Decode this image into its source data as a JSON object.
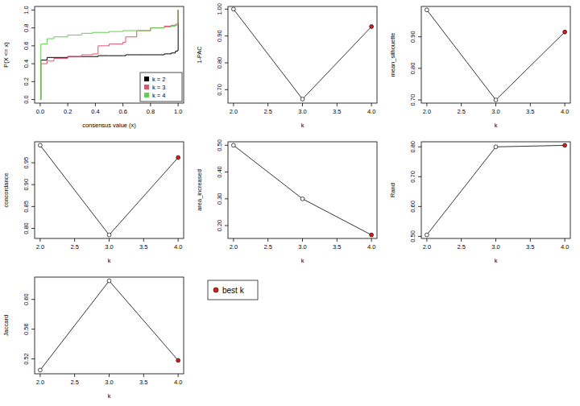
{
  "chart_data": [
    {
      "type": "line",
      "line_style": "step",
      "x_label": "consensus value (x)",
      "y_label": "P(X <= x)",
      "legend": "bottomright",
      "x": [
        0,
        0.005,
        0.05,
        0.1,
        0.2,
        0.3,
        0.38,
        0.42,
        0.5,
        0.6,
        0.62,
        0.7,
        0.8,
        0.9,
        0.95,
        0.98,
        0.995,
        1.0
      ],
      "series": [
        {
          "name": "k = 2",
          "color": "#000000",
          "values": [
            0,
            0.44,
            0.47,
            0.47,
            0.48,
            0.48,
            0.48,
            0.49,
            0.49,
            0.49,
            0.5,
            0.5,
            0.5,
            0.51,
            0.52,
            0.54,
            0.55,
            1.0
          ]
        },
        {
          "name": "k = 3",
          "color": "#DF536B",
          "values": [
            0,
            0.4,
            0.43,
            0.46,
            0.48,
            0.5,
            0.51,
            0.6,
            0.62,
            0.64,
            0.7,
            0.77,
            0.8,
            0.82,
            0.83,
            0.84,
            0.86,
            1.0
          ]
        },
        {
          "name": "k = 4",
          "color": "#61D04F",
          "values": [
            0,
            0.62,
            0.68,
            0.7,
            0.72,
            0.74,
            0.75,
            0.75,
            0.76,
            0.77,
            0.77,
            0.77,
            0.8,
            0.81,
            0.82,
            0.83,
            0.85,
            1.0
          ]
        }
      ],
      "xlim": [
        -0.04,
        1.04
      ],
      "ylim": [
        -0.04,
        1.04
      ],
      "xticks": [
        {
          "value": 0,
          "label": "0.0"
        },
        {
          "value": 0.2,
          "label": "0.2"
        },
        {
          "value": 0.4,
          "label": "0.4"
        },
        {
          "value": 0.6,
          "label": "0.6"
        },
        {
          "value": 0.8,
          "label": "0.8"
        },
        {
          "value": 1,
          "label": "1.0"
        }
      ],
      "yticks": [
        {
          "value": 0,
          "label": "0.0"
        },
        {
          "value": 0.2,
          "label": "0.2"
        },
        {
          "value": 0.4,
          "label": "0.4"
        },
        {
          "value": 0.6,
          "label": "0.6"
        },
        {
          "value": 0.8,
          "label": "0.8"
        },
        {
          "value": 1,
          "label": "1.0"
        }
      ]
    },
    {
      "type": "line",
      "marker": "circle",
      "x_label": "k",
      "y_label": "1-PAC",
      "x": [
        2,
        3,
        4
      ],
      "values": [
        1.0,
        0.665,
        0.935
      ],
      "colors": [
        "#FFFFFF",
        "#FFFFFF",
        "#E41A1C"
      ],
      "xlim": [
        1.92,
        4.08
      ],
      "ylim": [
        0.65,
        1.01
      ],
      "xticks": [
        {
          "value": 2,
          "label": "2.0"
        },
        {
          "value": 2.5,
          "label": "2.5"
        },
        {
          "value": 3,
          "label": "3.0"
        },
        {
          "value": 3.5,
          "label": "3.5"
        },
        {
          "value": 4,
          "label": "4.0"
        }
      ],
      "yticks": [
        {
          "value": 0.7,
          "label": "0.70"
        },
        {
          "value": 0.8,
          "label": "0.80"
        },
        {
          "value": 0.9,
          "label": "0.90"
        },
        {
          "value": 1,
          "label": "1.00"
        }
      ]
    },
    {
      "type": "line",
      "marker": "circle",
      "x_label": "k",
      "y_label": "mean_silhouette",
      "x": [
        2,
        3,
        4
      ],
      "values": [
        0.985,
        0.7,
        0.915
      ],
      "colors": [
        "#FFFFFF",
        "#FFFFFF",
        "#E41A1C"
      ],
      "xlim": [
        1.92,
        4.08
      ],
      "ylim": [
        0.69,
        0.996
      ],
      "xticks": [
        {
          "value": 2,
          "label": "2.0"
        },
        {
          "value": 2.5,
          "label": "2.5"
        },
        {
          "value": 3,
          "label": "3.0"
        },
        {
          "value": 3.5,
          "label": "3.5"
        },
        {
          "value": 4,
          "label": "4.0"
        }
      ],
      "yticks": [
        {
          "value": 0.7,
          "label": "0.70"
        },
        {
          "value": 0.8,
          "label": "0.80"
        },
        {
          "value": 0.9,
          "label": "0.90"
        }
      ]
    },
    {
      "type": "line",
      "marker": "circle",
      "x_label": "k",
      "y_label": "concordance",
      "x": [
        2,
        3,
        4
      ],
      "values": [
        0.99,
        0.785,
        0.962
      ],
      "colors": [
        "#FFFFFF",
        "#FFFFFF",
        "#E41A1C"
      ],
      "xlim": [
        1.92,
        4.08
      ],
      "ylim": [
        0.777,
        0.998
      ],
      "xticks": [
        {
          "value": 2,
          "label": "2.0"
        },
        {
          "value": 2.5,
          "label": "2.5"
        },
        {
          "value": 3,
          "label": "3.0"
        },
        {
          "value": 3.5,
          "label": "3.5"
        },
        {
          "value": 4,
          "label": "4.0"
        }
      ],
      "yticks": [
        {
          "value": 0.8,
          "label": "0.80"
        },
        {
          "value": 0.85,
          "label": "0.85"
        },
        {
          "value": 0.9,
          "label": "0.90"
        },
        {
          "value": 0.95,
          "label": "0.95"
        }
      ]
    },
    {
      "type": "line",
      "marker": "circle",
      "x_label": "k",
      "y_label": "area_increased",
      "x": [
        2,
        3,
        4
      ],
      "values": [
        0.5,
        0.3,
        0.165
      ],
      "colors": [
        "#FFFFFF",
        "#FFFFFF",
        "#E41A1C"
      ],
      "xlim": [
        1.92,
        4.08
      ],
      "ylim": [
        0.152,
        0.513
      ],
      "xticks": [
        {
          "value": 2,
          "label": "2.0"
        },
        {
          "value": 2.5,
          "label": "2.5"
        },
        {
          "value": 3,
          "label": "3.0"
        },
        {
          "value": 3.5,
          "label": "3.5"
        },
        {
          "value": 4,
          "label": "4.0"
        }
      ],
      "yticks": [
        {
          "value": 0.2,
          "label": "0.20"
        },
        {
          "value": 0.3,
          "label": "0.30"
        },
        {
          "value": 0.4,
          "label": "0.40"
        },
        {
          "value": 0.5,
          "label": "0.50"
        }
      ]
    },
    {
      "type": "line",
      "marker": "circle",
      "x_label": "k",
      "y_label": "Rand",
      "x": [
        2,
        3,
        4
      ],
      "values": [
        0.505,
        0.8,
        0.805
      ],
      "colors": [
        "#FFFFFF",
        "#FFFFFF",
        "#E41A1C"
      ],
      "xlim": [
        1.92,
        4.08
      ],
      "ylim": [
        0.493,
        0.817
      ],
      "xticks": [
        {
          "value": 2,
          "label": "2.0"
        },
        {
          "value": 2.5,
          "label": "2.5"
        },
        {
          "value": 3,
          "label": "3.0"
        },
        {
          "value": 3.5,
          "label": "3.5"
        },
        {
          "value": 4,
          "label": "4.0"
        }
      ],
      "yticks": [
        {
          "value": 0.5,
          "label": "0.50"
        },
        {
          "value": 0.6,
          "label": "0.60"
        },
        {
          "value": 0.7,
          "label": "0.70"
        },
        {
          "value": 0.8,
          "label": "0.80"
        }
      ]
    },
    {
      "type": "line",
      "marker": "circle",
      "x_label": "k",
      "y_label": "Jaccard",
      "x": [
        2,
        3,
        4
      ],
      "values": [
        0.505,
        0.625,
        0.518
      ],
      "colors": [
        "#FFFFFF",
        "#FFFFFF",
        "#E41A1C"
      ],
      "xlim": [
        1.92,
        4.08
      ],
      "ylim": [
        0.5,
        0.63
      ],
      "xticks": [
        {
          "value": 2,
          "label": "2.0"
        },
        {
          "value": 2.5,
          "label": "2.5"
        },
        {
          "value": 3,
          "label": "3.0"
        },
        {
          "value": 3.5,
          "label": "3.5"
        },
        {
          "value": 4,
          "label": "4.0"
        }
      ],
      "yticks": [
        {
          "value": 0.52,
          "label": "0.52"
        },
        {
          "value": 0.56,
          "label": "0.56"
        },
        {
          "value": 0.6,
          "label": "0.60"
        }
      ]
    }
  ],
  "legend_text": "best k",
  "legend_color": "#E41A1C"
}
